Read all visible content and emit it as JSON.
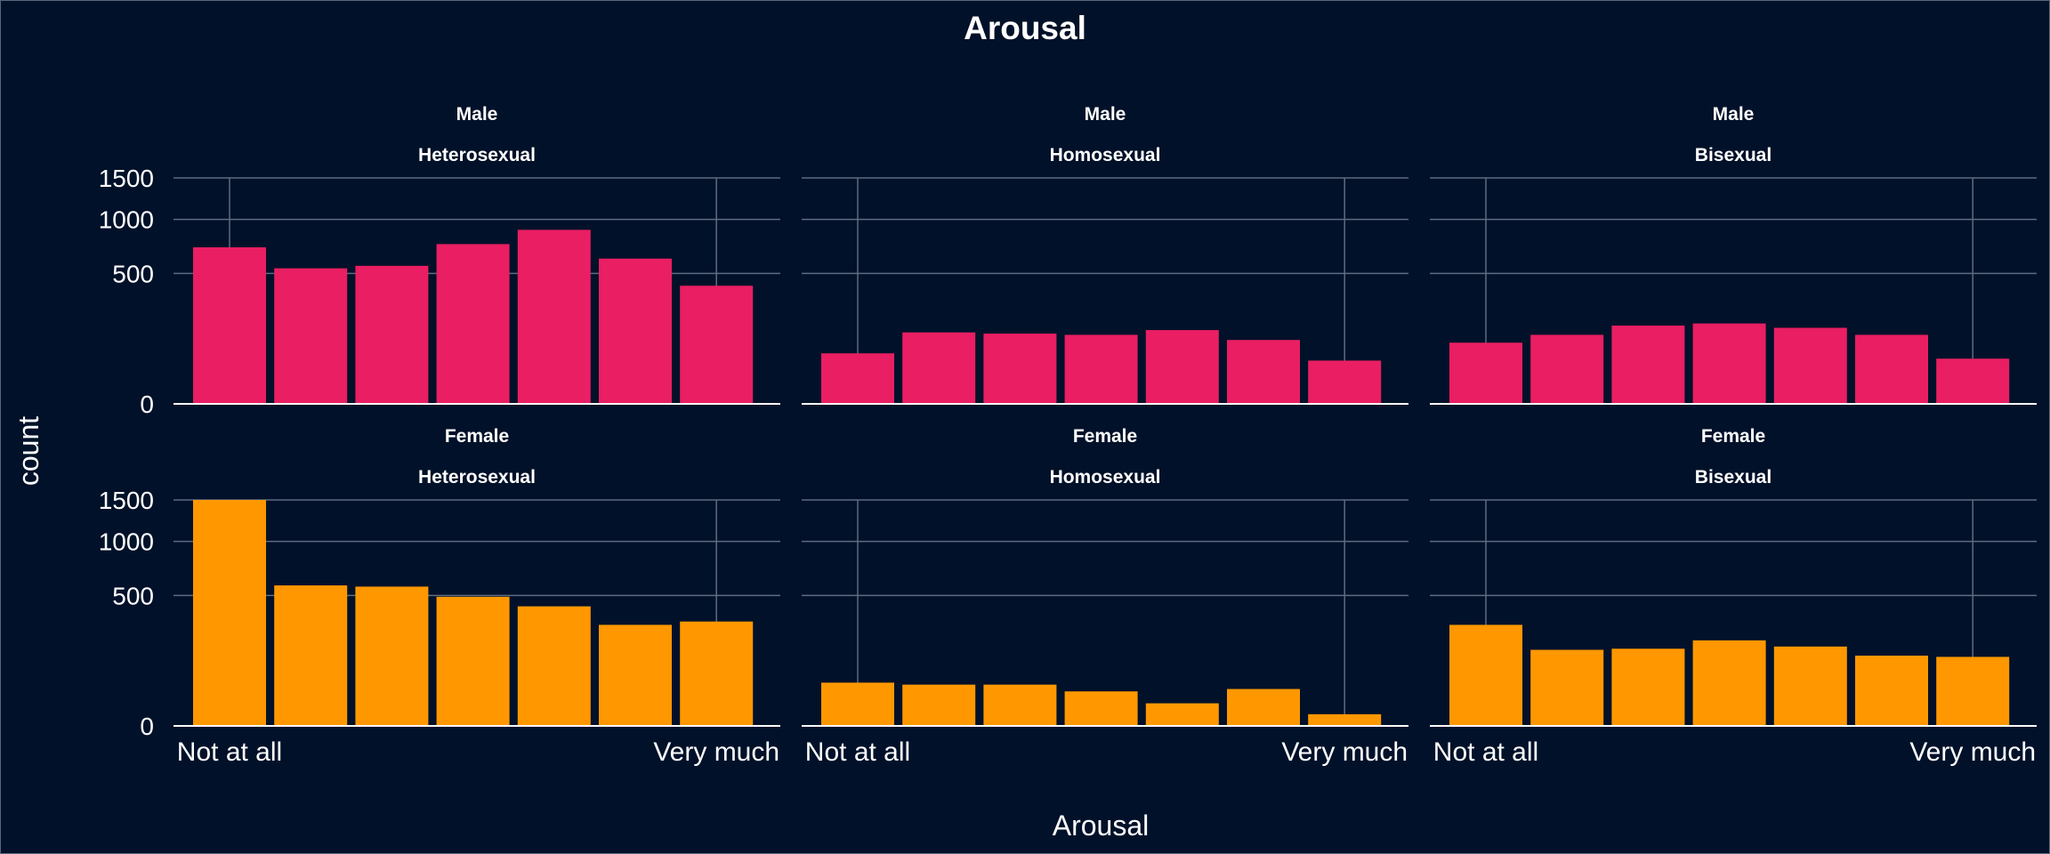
{
  "chart_data": {
    "type": "bar",
    "title": "Arousal",
    "xlabel": "Arousal",
    "ylabel": "count",
    "x_ticks": [
      "Not at all",
      "Very much"
    ],
    "y_ticks": [
      0,
      500,
      1000,
      1500
    ],
    "ylim": [
      0,
      1500
    ],
    "y_scale": "sqrt",
    "grid": true,
    "legend": "none",
    "colors": {
      "Male": "#e91e63",
      "Female": "#ff9800",
      "background": "#011129",
      "grid": "#5e6b80"
    },
    "categories": [
      "1",
      "2",
      "3",
      "4",
      "5",
      "6",
      "7"
    ],
    "panels": [
      {
        "row": "Male",
        "col": "Heterosexual",
        "values": [
          720,
          540,
          560,
          750,
          890,
          620,
          410
        ]
      },
      {
        "row": "Male",
        "col": "Homosexual",
        "values": [
          75,
          150,
          145,
          140,
          160,
          120,
          55
        ]
      },
      {
        "row": "Male",
        "col": "Bisexual",
        "values": [
          110,
          140,
          180,
          190,
          170,
          140,
          60
        ]
      },
      {
        "row": "Female",
        "col": "Heterosexual",
        "values": [
          1500,
          580,
          570,
          490,
          420,
          300,
          320
        ]
      },
      {
        "row": "Female",
        "col": "Homosexual",
        "values": [
          55,
          50,
          50,
          35,
          15,
          40,
          4
        ]
      },
      {
        "row": "Female",
        "col": "Bisexual",
        "values": [
          300,
          170,
          175,
          215,
          185,
          145,
          140
        ]
      }
    ]
  }
}
